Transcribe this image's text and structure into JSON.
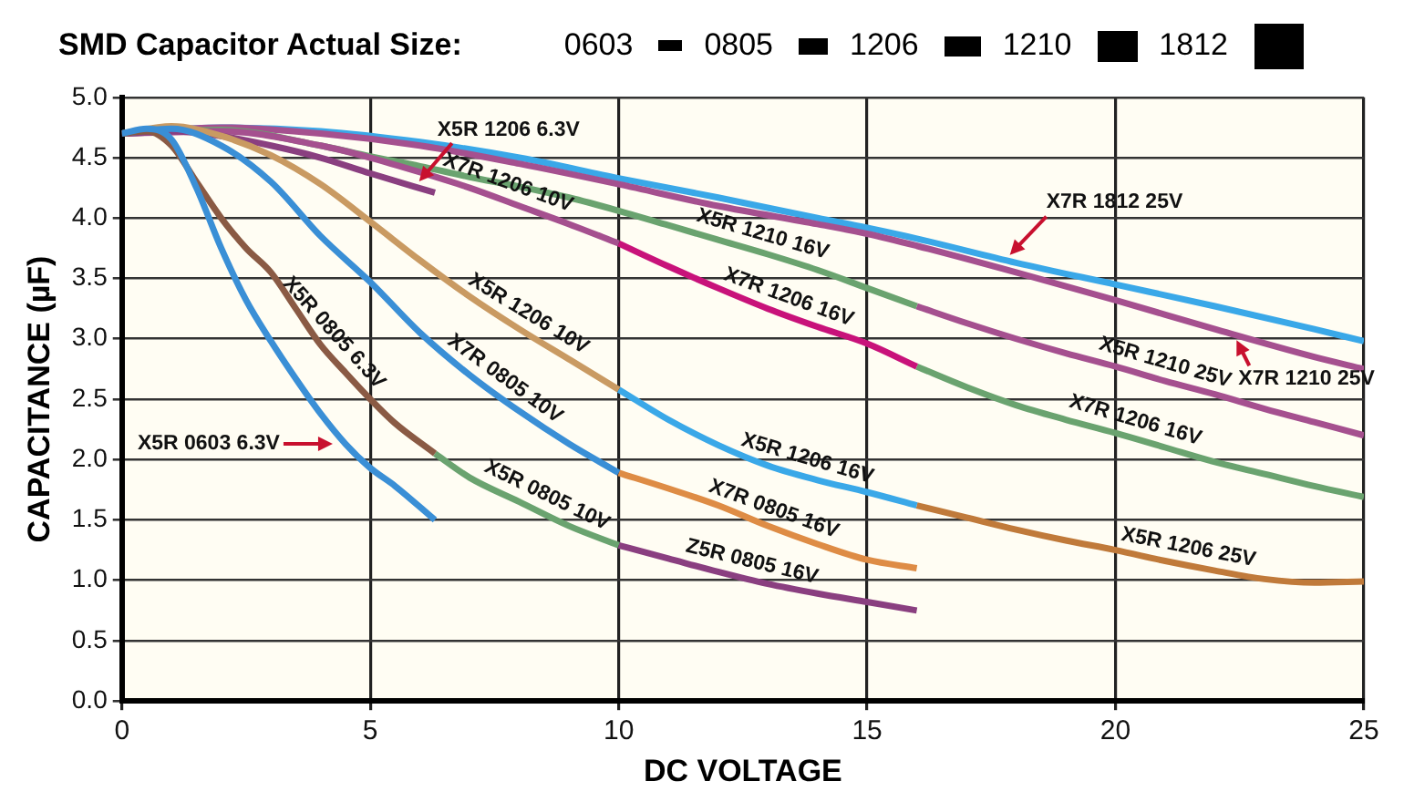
{
  "chart_data": {
    "type": "line",
    "title": "SMD Capacitor Actual Size:",
    "annotations": [
      "0603",
      "0805",
      "1206",
      "1210",
      "1812"
    ],
    "xlabel": "DC VOLTAGE",
    "ylabel": "CAPACITANCE (µF)",
    "xlim": [
      0,
      25
    ],
    "xticks": [
      0,
      5,
      10,
      15,
      20,
      25
    ],
    "ylim": [
      0,
      5
    ],
    "yticks": [
      {
        "value": 0,
        "label": "0.0"
      },
      {
        "value": 0.5,
        "label": "0.5"
      },
      {
        "value": 1,
        "label": "1.0"
      },
      {
        "value": 1.5,
        "label": "1.5"
      },
      {
        "value": 2,
        "label": "2.0"
      },
      {
        "value": 2.5,
        "label": "2.5"
      },
      {
        "value": 3,
        "label": "3.0"
      },
      {
        "value": 3.5,
        "label": "3.5"
      },
      {
        "value": 4,
        "label": "4.0"
      },
      {
        "value": 4.5,
        "label": "4.5"
      },
      {
        "value": 5,
        "label": "5.0"
      }
    ],
    "grid": true,
    "legend": false,
    "marker": "none",
    "line_style": "solid",
    "series": [
      {
        "name": "X5R 0603 6.3V",
        "color": "#3a8fd6",
        "x": [
          0,
          0.5,
          1,
          1.5,
          2,
          2.5,
          3,
          3.5,
          4,
          4.5,
          5,
          5.5,
          6.3
        ],
        "values": [
          4.7,
          4.74,
          4.65,
          4.25,
          3.75,
          3.32,
          2.98,
          2.67,
          2.38,
          2.13,
          1.93,
          1.78,
          1.5
        ]
      },
      {
        "name": "X5R 0805 6.3V",
        "color": "#8a5a44",
        "x": [
          0,
          0.5,
          1,
          1.5,
          2,
          2.5,
          3,
          3.5,
          4,
          4.5,
          5,
          5.5,
          6.3
        ],
        "values": [
          4.7,
          4.72,
          4.6,
          4.3,
          4.0,
          3.75,
          3.55,
          3.25,
          2.95,
          2.72,
          2.5,
          2.3,
          2.05
        ]
      },
      {
        "name": "X5R 0805 10V",
        "color": "#6aa36f",
        "x": [
          6.3,
          7,
          8,
          9,
          10
        ],
        "values": [
          2.05,
          1.85,
          1.65,
          1.45,
          1.29
        ]
      },
      {
        "name": "Z5R 0805 16V",
        "color": "#8a3f80",
        "x": [
          10,
          11,
          12,
          13,
          14,
          15,
          16
        ],
        "values": [
          1.29,
          1.18,
          1.07,
          0.97,
          0.89,
          0.82,
          0.75
        ]
      },
      {
        "name": "X7R 0805 10V",
        "color": "#3a8fd6",
        "x": [
          0,
          1,
          2,
          3,
          4,
          5,
          6,
          7,
          8,
          9,
          10
        ],
        "values": [
          4.7,
          4.74,
          4.6,
          4.3,
          3.85,
          3.47,
          3.05,
          2.7,
          2.4,
          2.13,
          1.89
        ]
      },
      {
        "name": "X7R 0805 16V",
        "color": "#de8c45",
        "x": [
          10,
          11,
          12,
          13,
          14,
          15,
          16
        ],
        "values": [
          1.89,
          1.76,
          1.62,
          1.45,
          1.3,
          1.17,
          1.1
        ]
      },
      {
        "name": "X5R 1206 10V",
        "color": "#c99a62",
        "x": [
          0,
          1,
          2,
          3,
          4,
          5,
          6,
          7,
          8,
          9,
          10
        ],
        "values": [
          4.7,
          4.76,
          4.68,
          4.52,
          4.28,
          3.97,
          3.65,
          3.35,
          3.08,
          2.83,
          2.58
        ]
      },
      {
        "name": "X5R 1206 16V",
        "color": "#3aa8e8",
        "x": [
          10,
          11,
          12,
          13,
          14,
          15,
          16
        ],
        "values": [
          2.58,
          2.33,
          2.12,
          1.95,
          1.83,
          1.73,
          1.62
        ]
      },
      {
        "name": "X5R 1206 25V",
        "color": "#c07a3a",
        "x": [
          16,
          17,
          18,
          19,
          20,
          21,
          22,
          23,
          24,
          25
        ],
        "values": [
          1.62,
          1.52,
          1.42,
          1.33,
          1.25,
          1.16,
          1.08,
          1.01,
          0.98,
          0.99
        ]
      },
      {
        "name": "X5R 1206 6.3V",
        "color": "#8a3f80",
        "x": [
          0,
          1,
          2,
          3,
          4,
          5,
          6.3
        ],
        "values": [
          4.7,
          4.72,
          4.68,
          4.6,
          4.5,
          4.37,
          4.21
        ]
      },
      {
        "name": "X7R 1206 10V",
        "color": "#a5508f",
        "x": [
          0,
          2,
          4,
          5,
          6,
          7,
          8,
          9,
          10
        ],
        "values": [
          4.7,
          4.72,
          4.6,
          4.5,
          4.38,
          4.25,
          4.1,
          3.95,
          3.79
        ]
      },
      {
        "name": "X7R 1206 16V",
        "color": "#c8127a",
        "x": [
          10,
          11,
          12,
          13,
          14,
          15,
          16
        ],
        "values": [
          3.79,
          3.6,
          3.42,
          3.25,
          3.1,
          2.96,
          2.77
        ]
      },
      {
        "name": "X7R 1206 16V",
        "color": "#6aa36f",
        "x": [
          16,
          17,
          18,
          19,
          20,
          21,
          22,
          23,
          24,
          25
        ],
        "values": [
          2.77,
          2.6,
          2.45,
          2.33,
          2.22,
          2.1,
          1.98,
          1.88,
          1.78,
          1.69
        ]
      },
      {
        "name": "X5R 1210 16V",
        "color": "#6aa36f",
        "x": [
          0,
          2,
          4,
          5,
          6,
          7,
          8,
          9,
          10,
          11,
          12,
          13,
          14,
          15,
          16
        ],
        "values": [
          4.7,
          4.73,
          4.6,
          4.51,
          4.43,
          4.34,
          4.26,
          4.17,
          4.06,
          3.94,
          3.82,
          3.7,
          3.57,
          3.42,
          3.27
        ]
      },
      {
        "name": "X5R 1210 25V",
        "color": "#a5508f",
        "x": [
          16,
          17,
          18,
          19,
          20,
          21,
          22,
          23,
          24,
          25
        ],
        "values": [
          3.27,
          3.13,
          3.0,
          2.88,
          2.77,
          2.65,
          2.54,
          2.42,
          2.31,
          2.2
        ]
      },
      {
        "name": "X7R 1210 25V",
        "color": "#a5508f",
        "x": [
          0,
          2,
          4,
          6,
          8,
          10,
          12,
          14,
          15,
          16,
          18,
          20,
          22,
          24,
          25
        ],
        "values": [
          4.7,
          4.75,
          4.7,
          4.6,
          4.45,
          4.28,
          4.1,
          3.95,
          3.87,
          3.77,
          3.55,
          3.32,
          3.08,
          2.85,
          2.75
        ]
      },
      {
        "name": "X7R 1812 25V",
        "color": "#3aa8e8",
        "x": [
          0,
          2,
          4,
          6,
          8,
          10,
          12,
          14,
          15,
          16,
          18,
          20,
          22,
          24,
          25
        ],
        "values": [
          4.7,
          4.75,
          4.72,
          4.63,
          4.5,
          4.33,
          4.17,
          4.0,
          3.92,
          3.83,
          3.63,
          3.45,
          3.27,
          3.08,
          2.98
        ]
      }
    ]
  }
}
